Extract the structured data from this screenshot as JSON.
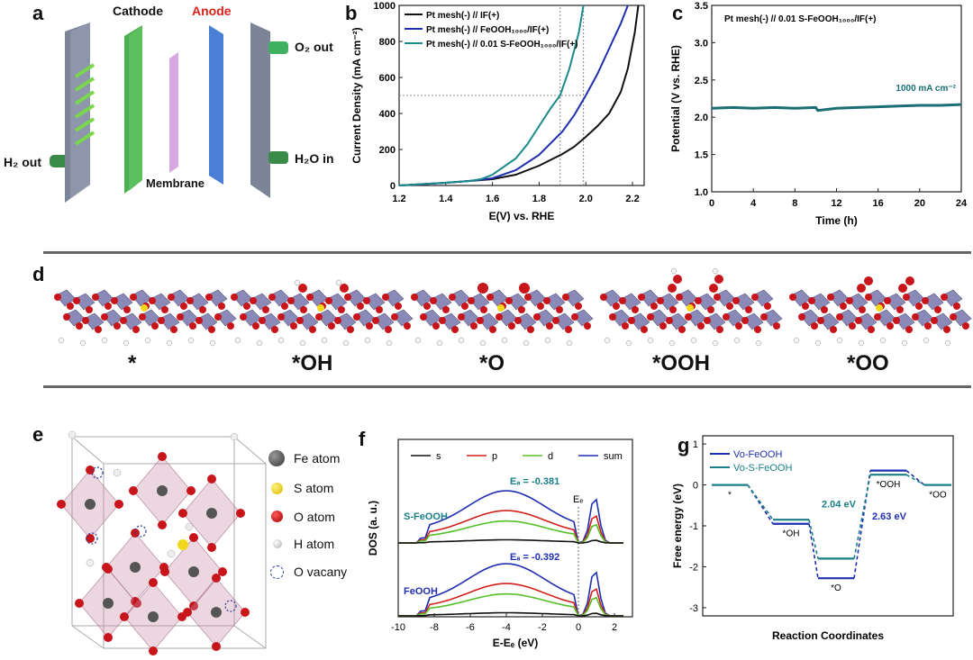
{
  "panels": {
    "a": "a",
    "b": "b",
    "c": "c",
    "d": "d",
    "e": "e",
    "f": "f",
    "g": "g"
  },
  "panel_a": {
    "cathode": "Cathode",
    "anode": "Anode",
    "o2_out": "O₂ out",
    "h2_out": "H₂ out",
    "h2o_in": "H₂O in",
    "membrane": "Membrane",
    "colors": {
      "cathode": "#4caf50",
      "anode": "#4a7fd6",
      "anode_label": "#e0201b",
      "plate": "#8a93a8",
      "membrane": "#d8a8e0",
      "tube": "#3a8a4a"
    }
  },
  "panel_d": {
    "labels": [
      "*",
      "*OH",
      "*O",
      "*OOH",
      "*OO"
    ]
  },
  "panel_e": {
    "legend": [
      "Fe atom",
      "S atom",
      "O atom",
      "H atom",
      "O vacany"
    ],
    "colors": {
      "fe": "#555555",
      "s": "#f2d81c",
      "o": "#d0141b",
      "h": "#dddddd",
      "vac": "#2a3a9a"
    }
  },
  "chart_data": [
    {
      "id": "b",
      "type": "line",
      "xlabel": "E(V) vs. RHE",
      "ylabel": "Current Density (mA cm⁻²)",
      "xlim": [
        1.2,
        2.25
      ],
      "ylim": [
        0,
        1000
      ],
      "xticks": [
        "1.2",
        "1.4",
        "1.6",
        "1.8",
        "2.0",
        "2.2"
      ],
      "yticks": [
        "0",
        "200",
        "400",
        "600",
        "800",
        "1000"
      ],
      "ref_lines": {
        "y": 500,
        "x": [
          1.89,
          1.99
        ]
      },
      "series": [
        {
          "name": "Pt mesh(-) // IF(+)",
          "color": "#111111",
          "x": [
            1.2,
            1.4,
            1.5,
            1.6,
            1.7,
            1.8,
            1.9,
            1.95,
            2.0,
            2.05,
            2.1,
            2.15,
            2.18,
            2.21,
            2.225
          ],
          "y": [
            0,
            15,
            25,
            35,
            60,
            110,
            175,
            215,
            270,
            330,
            400,
            520,
            650,
            850,
            1000
          ]
        },
        {
          "name": "Pt mesh(-) // FeOOH₁₀₀₀/IF(+)",
          "color": "#1f2fb0",
          "x": [
            1.2,
            1.4,
            1.5,
            1.6,
            1.7,
            1.8,
            1.9,
            1.95,
            2.0,
            2.05,
            2.1,
            2.15,
            2.18
          ],
          "y": [
            0,
            15,
            25,
            40,
            85,
            170,
            300,
            390,
            500,
            620,
            760,
            900,
            1000
          ]
        },
        {
          "name": "Pt mesh(-) // 0.01 S-FeOOH₁₀₀₀/IF(+)",
          "color": "#1a8a8a",
          "x": [
            1.2,
            1.4,
            1.5,
            1.55,
            1.6,
            1.7,
            1.75,
            1.8,
            1.85,
            1.89,
            1.93,
            1.97,
            1.99
          ],
          "y": [
            0,
            15,
            25,
            35,
            60,
            150,
            230,
            330,
            430,
            500,
            650,
            850,
            1000
          ]
        }
      ]
    },
    {
      "id": "c",
      "type": "line",
      "title": "Pt mesh(-) // 0.01 S-FeOOH₁₀₀₀/IF(+)",
      "xlabel": "Time (h)",
      "ylabel": "Potential (V vs. RHE)",
      "xlim": [
        0,
        24
      ],
      "ylim": [
        1.0,
        3.5
      ],
      "xticks": [
        "0",
        "4",
        "8",
        "12",
        "16",
        "20",
        "24"
      ],
      "yticks": [
        "1.0",
        "1.5",
        "2.0",
        "2.5",
        "3.0",
        "3.5"
      ],
      "annotation": "1000 mA cm⁻²",
      "series": [
        {
          "name": "S-FeOOH",
          "color": "#1a6e74",
          "x": [
            0,
            2,
            4,
            6,
            8,
            10,
            10.2,
            12,
            14,
            16,
            18,
            20,
            22,
            24
          ],
          "y": [
            2.12,
            2.13,
            2.12,
            2.13,
            2.12,
            2.13,
            2.09,
            2.12,
            2.13,
            2.14,
            2.15,
            2.16,
            2.16,
            2.17
          ]
        }
      ]
    },
    {
      "id": "f",
      "type": "line",
      "xlabel": "E-Eₑ (eV)",
      "ylabel": "DOS (a. u.)",
      "xlim": [
        -10,
        3
      ],
      "xticks": [
        "-10",
        "-8",
        "-6",
        "-4",
        "-2",
        "0",
        "2"
      ],
      "legend": [
        {
          "name": "s",
          "color": "#111111"
        },
        {
          "name": "p",
          "color": "#d0201b"
        },
        {
          "name": "d",
          "color": "#55c02a"
        },
        {
          "name": "sum",
          "color": "#1f2fb0"
        }
      ],
      "top": {
        "label": "S-FeOOH",
        "ed": "Eₐ = -0.381",
        "ef": "Eₑ"
      },
      "bottom": {
        "label": "FeOOH",
        "ed": "Eₐ = -0.392"
      }
    },
    {
      "id": "g",
      "type": "line",
      "xlabel": "Reaction Coordinates",
      "ylabel": "Free energy (eV)",
      "ylim": [
        -3.2,
        1.2
      ],
      "yticks": [
        "1",
        "0",
        "-1",
        "-2",
        "-3"
      ],
      "steps": [
        "*",
        "*OH",
        "*O",
        "*OOH",
        "*OO"
      ],
      "series": [
        {
          "name": "Vo-FeOOH",
          "color": "#1f2fb0",
          "values": [
            0,
            -0.95,
            -2.28,
            0.35,
            0
          ]
        },
        {
          "name": "Vo-S-FeOOH",
          "color": "#1a7f86",
          "values": [
            0,
            -0.85,
            -1.8,
            0.25,
            0
          ]
        }
      ],
      "annotations": [
        "2.04 eV",
        "2.63 eV"
      ]
    }
  ]
}
